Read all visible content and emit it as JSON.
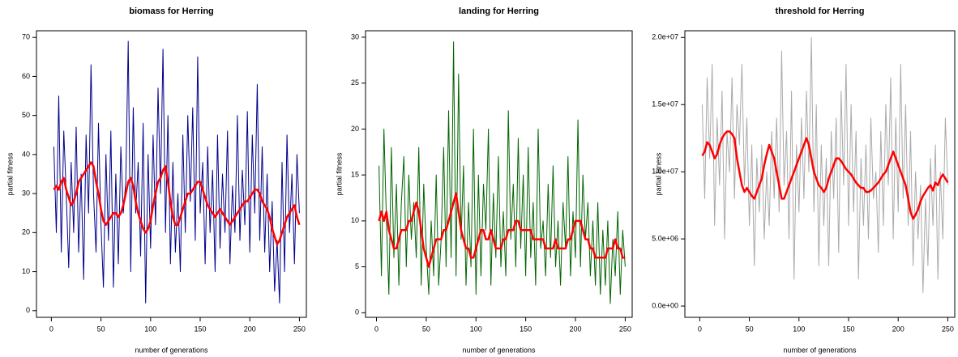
{
  "chart_data": [
    {
      "type": "line",
      "title": "biomass for Herring",
      "xlabel": "number of generations",
      "ylabel": "partial fitness",
      "x": [
        2.5,
        5,
        7.5,
        10,
        12.5,
        15,
        17.5,
        20,
        22.5,
        25,
        27.5,
        30,
        32.5,
        35,
        37.5,
        40,
        42.5,
        45,
        47.5,
        50,
        52.5,
        55,
        57.5,
        60,
        62.5,
        65,
        67.5,
        70,
        72.5,
        75,
        77.5,
        80,
        82.5,
        85,
        87.5,
        90,
        92.5,
        95,
        97.5,
        100,
        102.5,
        105,
        107.5,
        110,
        112.5,
        115,
        117.5,
        120,
        122.5,
        125,
        127.5,
        130,
        132.5,
        135,
        137.5,
        140,
        142.5,
        145,
        147.5,
        150,
        152.5,
        155,
        157.5,
        160,
        162.5,
        165,
        167.5,
        170,
        172.5,
        175,
        177.5,
        180,
        182.5,
        185,
        187.5,
        190,
        192.5,
        195,
        197.5,
        200,
        202.5,
        205,
        207.5,
        210,
        212.5,
        215,
        217.5,
        220,
        222.5,
        225,
        227.5,
        230,
        232.5,
        235,
        237.5,
        240,
        242.5,
        245,
        247.5,
        250
      ],
      "series": [
        {
          "color": "#00008b",
          "width": 1,
          "values": [
            42,
            20,
            55,
            15,
            46,
            30,
            11,
            38,
            20,
            47,
            15,
            35,
            8,
            45,
            25,
            63,
            30,
            15,
            48,
            22,
            6,
            40,
            18,
            46,
            6,
            35,
            12,
            42,
            25,
            33,
            69,
            10,
            52,
            25,
            38,
            14,
            48,
            2,
            40,
            16,
            45,
            22,
            57,
            30,
            67,
            20,
            50,
            12,
            38,
            15,
            30,
            10,
            45,
            20,
            50,
            28,
            52,
            18,
            65,
            25,
            38,
            12,
            42,
            20,
            36,
            10,
            45,
            16,
            35,
            20,
            46,
            12,
            32,
            20,
            50,
            18,
            36,
            22,
            51,
            15,
            45,
            25,
            58,
            18,
            42,
            15,
            35,
            10,
            28,
            5,
            18,
            2,
            38,
            10,
            45,
            20,
            35,
            12,
            40,
            25
          ]
        },
        {
          "color": "#ff0000",
          "width": 2.5,
          "values": [
            31,
            32,
            31,
            33,
            34,
            31,
            29,
            27,
            28,
            30,
            33,
            34,
            35,
            36,
            37,
            38,
            37,
            33,
            30,
            26,
            23,
            22,
            23,
            24,
            25,
            25,
            24,
            25,
            27,
            30,
            33,
            34,
            32,
            28,
            25,
            23,
            21,
            20,
            21,
            23,
            27,
            30,
            33,
            34,
            36,
            37,
            33,
            28,
            24,
            22,
            22,
            24,
            26,
            28,
            30,
            30,
            31,
            32,
            33,
            33,
            31,
            29,
            27,
            26,
            25,
            24,
            25,
            26,
            25,
            24,
            23,
            22,
            23,
            24,
            25,
            26,
            27,
            28,
            28,
            29,
            30,
            31,
            31,
            30,
            28,
            27,
            26,
            24,
            21,
            19,
            17,
            18,
            20,
            22,
            24,
            25,
            26,
            27,
            24,
            22
          ]
        }
      ],
      "xlim": [
        -15,
        257
      ],
      "ylim": [
        -1.7,
        71.7
      ],
      "xticks": [
        0,
        50,
        100,
        150,
        200,
        250
      ],
      "yticks": [
        0,
        10,
        20,
        30,
        40,
        50,
        60,
        70
      ]
    },
    {
      "type": "line",
      "title": "landing for Herring",
      "xlabel": "number of generations",
      "ylabel": "partial fitness",
      "x": [
        2.5,
        5,
        7.5,
        10,
        12.5,
        15,
        17.5,
        20,
        22.5,
        25,
        27.5,
        30,
        32.5,
        35,
        37.5,
        40,
        42.5,
        45,
        47.5,
        50,
        52.5,
        55,
        57.5,
        60,
        62.5,
        65,
        67.5,
        70,
        72.5,
        75,
        77.5,
        80,
        82.5,
        85,
        87.5,
        90,
        92.5,
        95,
        97.5,
        100,
        102.5,
        105,
        107.5,
        110,
        112.5,
        115,
        117.5,
        120,
        122.5,
        125,
        127.5,
        130,
        132.5,
        135,
        137.5,
        140,
        142.5,
        145,
        147.5,
        150,
        152.5,
        155,
        157.5,
        160,
        162.5,
        165,
        167.5,
        170,
        172.5,
        175,
        177.5,
        180,
        182.5,
        185,
        187.5,
        190,
        192.5,
        195,
        197.5,
        200,
        202.5,
        205,
        207.5,
        210,
        212.5,
        215,
        217.5,
        220,
        222.5,
        225,
        227.5,
        230,
        232.5,
        235,
        237.5,
        240,
        242.5,
        245,
        247.5,
        250
      ],
      "series": [
        {
          "color": "#006400",
          "width": 1,
          "values": [
            16,
            4,
            20,
            10,
            2,
            18,
            6,
            14,
            3,
            12,
            17,
            5,
            15,
            8,
            12,
            6,
            18,
            3,
            14,
            7,
            2,
            10,
            4,
            15,
            3,
            8,
            18,
            5,
            22,
            6,
            29.5,
            4,
            26,
            8,
            16,
            3,
            12,
            5,
            20,
            2,
            15,
            4,
            14,
            9,
            20,
            3,
            13,
            6,
            17,
            5,
            11,
            4,
            22,
            8,
            14,
            5,
            19,
            7,
            15,
            4,
            18,
            6,
            12,
            3,
            20,
            7,
            10,
            4,
            14,
            6,
            16,
            5,
            10,
            3,
            12,
            7,
            17,
            4,
            11,
            6,
            21,
            5,
            15,
            8,
            12,
            4,
            10,
            3,
            12,
            2,
            9,
            3,
            10,
            1,
            8,
            4,
            11,
            2,
            9,
            5
          ]
        },
        {
          "color": "#ff0000",
          "width": 2.5,
          "values": [
            10,
            11,
            10,
            11,
            9,
            8,
            7,
            7,
            8,
            9,
            9,
            9,
            10,
            10,
            11,
            12,
            11,
            9,
            7,
            6,
            5,
            6,
            7,
            8,
            8,
            8,
            9,
            9,
            10,
            11,
            12,
            13,
            11,
            9,
            8,
            7,
            7,
            6,
            6,
            7,
            8,
            9,
            9,
            8,
            8,
            9,
            8,
            7,
            7,
            7,
            8,
            8,
            9,
            9,
            9,
            10,
            10,
            9,
            9,
            9,
            9,
            9,
            8,
            8,
            8,
            8,
            8,
            7,
            7,
            7,
            7,
            8,
            7,
            7,
            7,
            7,
            8,
            8,
            9,
            10,
            10,
            10,
            9,
            8,
            8,
            7,
            7,
            6,
            6,
            6,
            6,
            6,
            7,
            7,
            7,
            8,
            7,
            7,
            6,
            6
          ]
        }
      ],
      "xlim": [
        -11,
        257
      ],
      "ylim": [
        -0.5,
        30.7
      ],
      "xticks": [
        0,
        50,
        100,
        150,
        200,
        250
      ],
      "yticks": [
        0,
        5,
        10,
        15,
        20,
        25,
        30
      ]
    },
    {
      "type": "line",
      "title": "threshold for Herring",
      "xlabel": "number of generations",
      "ylabel": "partial fitness",
      "x": [
        2.5,
        5,
        7.5,
        10,
        12.5,
        15,
        17.5,
        20,
        22.5,
        25,
        27.5,
        30,
        32.5,
        35,
        37.5,
        40,
        42.5,
        45,
        47.5,
        50,
        52.5,
        55,
        57.5,
        60,
        62.5,
        65,
        67.5,
        70,
        72.5,
        75,
        77.5,
        80,
        82.5,
        85,
        87.5,
        90,
        92.5,
        95,
        97.5,
        100,
        102.5,
        105,
        107.5,
        110,
        112.5,
        115,
        117.5,
        120,
        122.5,
        125,
        127.5,
        130,
        132.5,
        135,
        137.5,
        140,
        142.5,
        145,
        147.5,
        150,
        152.5,
        155,
        157.5,
        160,
        162.5,
        165,
        167.5,
        170,
        172.5,
        175,
        177.5,
        180,
        182.5,
        185,
        187.5,
        190,
        192.5,
        195,
        197.5,
        200,
        202.5,
        205,
        207.5,
        210,
        212.5,
        215,
        217.5,
        220,
        222.5,
        225,
        227.5,
        230,
        232.5,
        235,
        237.5,
        240,
        242.5,
        245,
        247.5,
        250
      ],
      "series": [
        {
          "color": "#aaaaaa",
          "width": 1,
          "values": [
            15000000.0,
            8000000.0,
            17000000.0,
            11000000.0,
            18000000.0,
            6000000.0,
            14000000.0,
            9000000.0,
            16000000.0,
            5000000.0,
            13000000.0,
            10000000.0,
            17000000.0,
            8000000.0,
            15000000.0,
            12000000.0,
            18000000.0,
            9000000.0,
            14000000.0,
            6000000.0,
            12000000.0,
            3000000.0,
            11000000.0,
            7000000.0,
            12000000.0,
            5000000.0,
            10000000.0,
            6000000.0,
            13000000.0,
            8000000.0,
            14000000.0,
            7000000.0,
            19000000.0,
            9000000.0,
            13000000.0,
            5000000.0,
            16000000.0,
            2000000.0,
            12000000.0,
            7000000.0,
            14000000.0,
            8000000.0,
            16000000.0,
            10000000.0,
            20000000.0,
            7000000.0,
            15000000.0,
            3000000.0,
            12000000.0,
            6000000.0,
            11000000.0,
            3000000.0,
            13000000.0,
            8000000.0,
            14000000.0,
            4000000.0,
            16000000.0,
            9000000.0,
            18000000.0,
            6000000.0,
            15000000.0,
            7000000.0,
            13000000.0,
            2000000.0,
            11000000.0,
            6000000.0,
            12000000.0,
            5000000.0,
            14000000.0,
            8000000.0,
            10000000.0,
            4000000.0,
            13000000.0,
            6000000.0,
            15000000.0,
            9000000.0,
            17000000.0,
            5000000.0,
            14000000.0,
            7000000.0,
            18000000.0,
            8000000.0,
            15000000.0,
            6000000.0,
            13000000.0,
            3000000.0,
            10000000.0,
            5000000.0,
            9000000.0,
            1000000.0,
            8000000.0,
            3000000.0,
            11000000.0,
            6000000.0,
            12000000.0,
            2000000.0,
            10000000.0,
            5000000.0,
            14000000.0,
            9000000.0
          ]
        },
        {
          "color": "#ff0000",
          "width": 2.5,
          "values": [
            11200000.0,
            11500000.0,
            12200000.0,
            12000000.0,
            11500000.0,
            11000000.0,
            11300000.0,
            12000000.0,
            12500000.0,
            12800000.0,
            13000000.0,
            13000000.0,
            12800000.0,
            12500000.0,
            11000000.0,
            10000000.0,
            9000000.0,
            8500000.0,
            8800000.0,
            8500000.0,
            8200000.0,
            8000000.0,
            8500000.0,
            9000000.0,
            9500000.0,
            10500000.0,
            11300000.0,
            12000000.0,
            11500000.0,
            11000000.0,
            10000000.0,
            9000000.0,
            8000000.0,
            8000000.0,
            8500000.0,
            9000000.0,
            9500000.0,
            10000000.0,
            10500000.0,
            11000000.0,
            11500000.0,
            12000000.0,
            12500000.0,
            12000000.0,
            11000000.0,
            10000000.0,
            9500000.0,
            9000000.0,
            8800000.0,
            8500000.0,
            8800000.0,
            9500000.0,
            10000000.0,
            10500000.0,
            11000000.0,
            11000000.0,
            10800000.0,
            10500000.0,
            10200000.0,
            10000000.0,
            9800000.0,
            9500000.0,
            9200000.0,
            9000000.0,
            8800000.0,
            8800000.0,
            8500000.0,
            8500000.0,
            8600000.0,
            8800000.0,
            9000000.0,
            9200000.0,
            9500000.0,
            9800000.0,
            10000000.0,
            10500000.0,
            11000000.0,
            11500000.0,
            11000000.0,
            10500000.0,
            10000000.0,
            9500000.0,
            9000000.0,
            8000000.0,
            7000000.0,
            6500000.0,
            6800000.0,
            7200000.0,
            7800000.0,
            8200000.0,
            8500000.0,
            8800000.0,
            9000000.0,
            8600000.0,
            9200000.0,
            9000000.0,
            9500000.0,
            9800000.0,
            9500000.0,
            9200000.0
          ]
        }
      ],
      "xlim": [
        -15,
        257
      ],
      "ylim": [
        -840000,
        20500000
      ],
      "xticks": [
        0,
        50,
        100,
        150,
        200,
        250
      ],
      "yticks": [
        {
          "value": 0,
          "label": "0.0e+00"
        },
        {
          "value": 5000000,
          "label": "5.0e+06"
        },
        {
          "value": 10000000,
          "label": "1.0e+07"
        },
        {
          "value": 15000000,
          "label": "1.5e+07"
        },
        {
          "value": 20000000,
          "label": "2.0e+07"
        }
      ]
    }
  ]
}
